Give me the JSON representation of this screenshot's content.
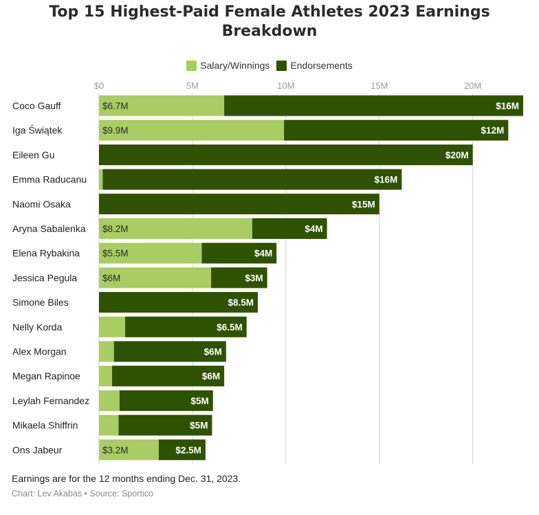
{
  "chart_data": {
    "type": "bar",
    "orientation": "horizontal",
    "stacked": true,
    "title": "Top 15 Highest-Paid Female Athletes 2023 Earnings Breakdown",
    "categories": [
      "Coco Gauff",
      "Iga Świątek",
      "Eileen Gu",
      "Emma Raducanu",
      "Naomi Osaka",
      "Aryna Sabalenka",
      "Elena Rybakina",
      "Jessica Pegula",
      "Simone Biles",
      "Nelly Korda",
      "Alex Morgan",
      "Megan Rapinoe",
      "Leylah Fernandez",
      "Mikaela Shiffrin",
      "Ons Jabeur"
    ],
    "series": [
      {
        "name": "Salary/Winnings",
        "color": "#a9cc63",
        "values": [
          6.7,
          9.9,
          0,
          0.2,
          0,
          8.2,
          5.5,
          6,
          0,
          1.4,
          0.8,
          0.7,
          1.1,
          1.05,
          3.2
        ],
        "labels": [
          "$6.7M",
          "$9.9M",
          "",
          "",
          "",
          "$8.2M",
          "$5.5M",
          "$6M",
          "",
          "",
          "",
          "",
          "",
          "",
          "$3.2M"
        ]
      },
      {
        "name": "Endorsements",
        "color": "#2f5200",
        "values": [
          16,
          12,
          20,
          16,
          15,
          4,
          4,
          3,
          8.5,
          6.5,
          6,
          6,
          5,
          5,
          2.5
        ],
        "labels": [
          "$16M",
          "$12M",
          "$20M",
          "$16M",
          "$15M",
          "$4M",
          "$4M",
          "$3M",
          "$8.5M",
          "$6.5M",
          "$6M",
          "$6M",
          "$5M",
          "$5M",
          "$2.5M"
        ]
      }
    ],
    "xlim": [
      0,
      22.7
    ],
    "xticks": [
      0,
      5,
      10,
      15,
      20
    ],
    "xtick_labels": [
      "$0",
      "5M",
      "10M",
      "15M",
      "20M"
    ],
    "xaxis_position": "top",
    "grid": true,
    "legend_position": "top-center"
  },
  "footnote": "Earnings are for the 12 months ending Dec. 31, 2023.",
  "credit": "Chart: Lev Akabas • Source: Sportico"
}
